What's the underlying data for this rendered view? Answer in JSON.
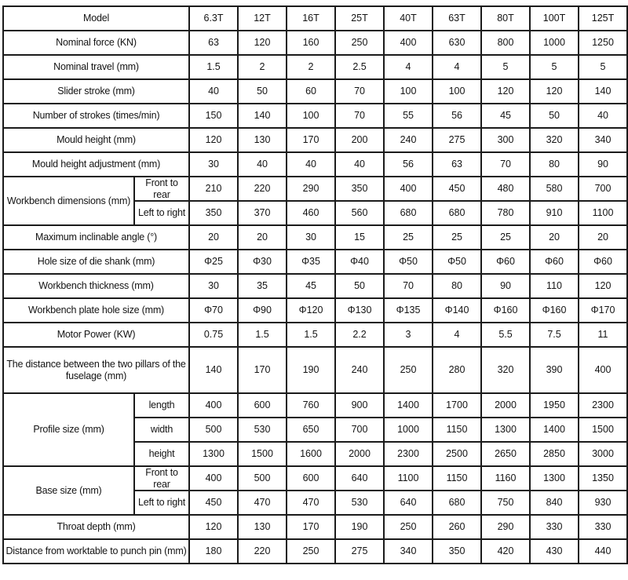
{
  "table": {
    "header": {
      "label": "Model",
      "models": [
        "6.3T",
        "12T",
        "16T",
        "25T",
        "40T",
        "63T",
        "80T",
        "100T",
        "125T"
      ]
    },
    "rows": [
      {
        "label": "Nominal force (KN)",
        "values": [
          "63",
          "120",
          "160",
          "250",
          "400",
          "630",
          "800",
          "1000",
          "1250"
        ]
      },
      {
        "label": "Nominal travel (mm)",
        "values": [
          "1.5",
          "2",
          "2",
          "2.5",
          "4",
          "4",
          "5",
          "5",
          "5"
        ]
      },
      {
        "label": "Slider stroke (mm)",
        "values": [
          "40",
          "50",
          "60",
          "70",
          "100",
          "100",
          "120",
          "120",
          "140"
        ]
      },
      {
        "label": "Number of strokes (times/min)",
        "values": [
          "150",
          "140",
          "100",
          "70",
          "55",
          "56",
          "45",
          "50",
          "40"
        ]
      },
      {
        "label": "Mould height (mm)",
        "values": [
          "120",
          "130",
          "170",
          "200",
          "240",
          "275",
          "300",
          "320",
          "340"
        ]
      },
      {
        "label": "Mould height adjustment (mm)",
        "values": [
          "30",
          "40",
          "40",
          "40",
          "56",
          "63",
          "70",
          "80",
          "90"
        ]
      },
      {
        "label": "Workbench dimensions (mm)",
        "subrows": [
          {
            "label": "Front to rear",
            "values": [
              "210",
              "220",
              "290",
              "350",
              "400",
              "450",
              "480",
              "580",
              "700"
            ]
          },
          {
            "label": "Left to right",
            "values": [
              "350",
              "370",
              "460",
              "560",
              "680",
              "680",
              "780",
              "910",
              "1100"
            ]
          }
        ]
      },
      {
        "label": "Maximum inclinable angle (°)",
        "values": [
          "20",
          "20",
          "30",
          "15",
          "25",
          "25",
          "25",
          "20",
          "20"
        ]
      },
      {
        "label": "Hole size of die shank (mm)",
        "values": [
          "Φ25",
          "Φ30",
          "Φ35",
          "Φ40",
          "Φ50",
          "Φ50",
          "Φ60",
          "Φ60",
          "Φ60"
        ]
      },
      {
        "label": "Workbench thickness (mm)",
        "values": [
          "30",
          "35",
          "45",
          "50",
          "70",
          "80",
          "90",
          "110",
          "120"
        ]
      },
      {
        "label": "Workbench plate hole size (mm)",
        "values": [
          "Φ70",
          "Φ90",
          "Φ120",
          "Φ130",
          "Φ135",
          "Φ140",
          "Φ160",
          "Φ160",
          "Φ170"
        ]
      },
      {
        "label": "Motor Power (KW)",
        "values": [
          "0.75",
          "1.5",
          "1.5",
          "2.2",
          "3",
          "4",
          "5.5",
          "7.5",
          "11"
        ]
      },
      {
        "label": "The distance between the two pillars of the fuselage (mm)",
        "tall": true,
        "values": [
          "140",
          "170",
          "190",
          "240",
          "250",
          "280",
          "320",
          "390",
          "400"
        ]
      },
      {
        "label": "Profile size (mm)",
        "subrows": [
          {
            "label": "length",
            "values": [
              "400",
              "600",
              "760",
              "900",
              "1400",
              "1700",
              "2000",
              "1950",
              "2300"
            ]
          },
          {
            "label": "width",
            "values": [
              "500",
              "530",
              "650",
              "700",
              "1000",
              "1150",
              "1300",
              "1400",
              "1500"
            ]
          },
          {
            "label": "height",
            "values": [
              "1300",
              "1500",
              "1600",
              "2000",
              "2300",
              "2500",
              "2650",
              "2850",
              "3000"
            ]
          }
        ]
      },
      {
        "label": "Base size (mm)",
        "subrows": [
          {
            "label": "Front to rear",
            "values": [
              "400",
              "500",
              "600",
              "640",
              "1100",
              "1150",
              "1160",
              "1300",
              "1350"
            ]
          },
          {
            "label": "Left to right",
            "values": [
              "450",
              "470",
              "470",
              "530",
              "640",
              "680",
              "750",
              "840",
              "930"
            ]
          }
        ]
      },
      {
        "label": "Throat depth (mm)",
        "values": [
          "120",
          "130",
          "170",
          "190",
          "250",
          "260",
          "290",
          "330",
          "330"
        ]
      },
      {
        "label": "Distance from worktable to punch pin (mm)",
        "values": [
          "180",
          "220",
          "250",
          "275",
          "340",
          "350",
          "420",
          "430",
          "440"
        ]
      }
    ]
  }
}
